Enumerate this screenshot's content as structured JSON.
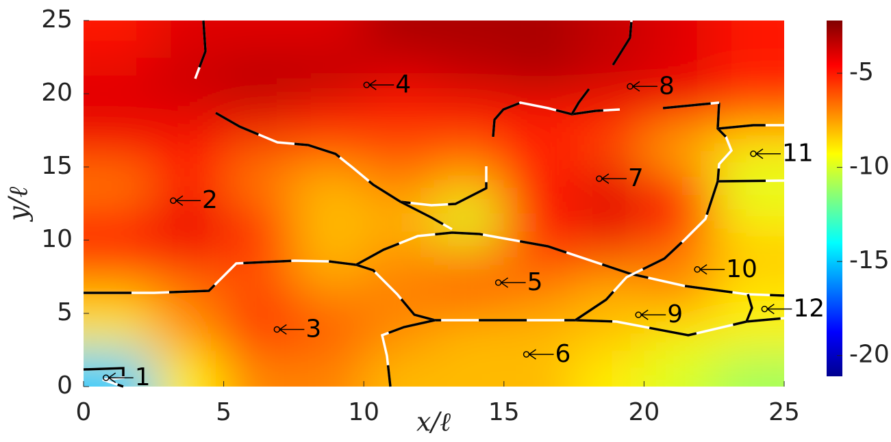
{
  "chart_data": {
    "type": "heatmap",
    "xlabel": "x/ℓ",
    "ylabel": "y/ℓ",
    "xlim": [
      0,
      25
    ],
    "ylim": [
      0,
      25
    ],
    "xticks": [
      0,
      5,
      10,
      15,
      20,
      25
    ],
    "yticks": [
      0,
      5,
      10,
      15,
      20,
      25
    ],
    "clim": [
      -21.1,
      -2.2
    ],
    "cticks": [
      -5,
      -10,
      -15,
      -20
    ],
    "colormap": "jet",
    "z": [
      [
        -15,
        -9,
        -7,
        -7,
        -8,
        -8,
        -8,
        -9,
        -10,
        -11
      ],
      [
        -9,
        -7,
        -5,
        -6,
        -7,
        -8,
        -8,
        -8,
        -9,
        -9
      ],
      [
        -8,
        -7,
        -6,
        -7,
        -7,
        -6,
        -7,
        -8,
        -7,
        -9
      ],
      [
        -5,
        -5,
        -6,
        -8,
        -7,
        -7,
        -6,
        -6,
        -7,
        -8
      ],
      [
        -5,
        -4,
        -5,
        -8,
        -8,
        -10,
        -5,
        -4,
        -5,
        -9
      ],
      [
        -7,
        -5,
        -7,
        -8,
        -7,
        -8,
        -5,
        -4,
        -5,
        -10
      ],
      [
        -5,
        -5,
        -6,
        -6,
        -6,
        -6,
        -5,
        -6,
        -8,
        -9
      ],
      [
        -4,
        -4,
        -4,
        -5,
        -5,
        -5,
        -5,
        -5,
        -5,
        -6
      ],
      [
        -4,
        -3.5,
        -3,
        -3,
        -4,
        -3.5,
        -3,
        -3.5,
        -4,
        -5
      ],
      [
        -5,
        -4,
        -4,
        -4,
        -3,
        -3,
        -3,
        -3.5,
        -4,
        -5
      ]
    ],
    "annotations": [
      {
        "text": "1",
        "x": 0.8,
        "y": 0.6
      },
      {
        "text": "2",
        "x": 3.2,
        "y": 12.7
      },
      {
        "text": "3",
        "x": 6.9,
        "y": 3.9
      },
      {
        "text": "4",
        "x": 10.1,
        "y": 20.6
      },
      {
        "text": "5",
        "x": 14.8,
        "y": 7.1
      },
      {
        "text": "6",
        "x": 15.8,
        "y": 2.2
      },
      {
        "text": "7",
        "x": 18.4,
        "y": 14.2
      },
      {
        "text": "8",
        "x": 19.5,
        "y": 20.5
      },
      {
        "text": "9",
        "x": 19.8,
        "y": 4.9
      },
      {
        "text": "10",
        "x": 21.9,
        "y": 8.0
      },
      {
        "text": "11",
        "x": 23.9,
        "y": 15.9
      },
      {
        "text": "12",
        "x": 24.3,
        "y": 5.3
      }
    ]
  }
}
